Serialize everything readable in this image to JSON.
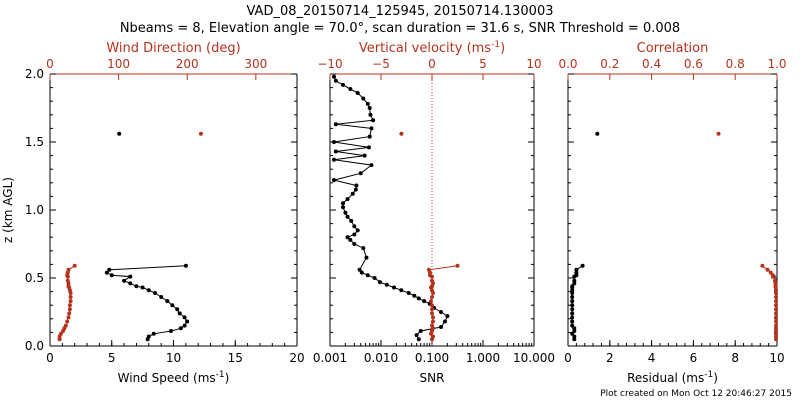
{
  "title_line1": "VAD_08_20150714_125945, 20150714.130003",
  "title_line2": "Nbeams = 8, Elevation angle = 70.0°, scan duration = 31.6 s, SNR Threshold = 0.008",
  "footer": "Plot created on Mon Oct 12 20:46:27 2015",
  "colors": {
    "black": "#000000",
    "red": "#b5321c"
  },
  "chart_data": [
    {
      "type": "scatter",
      "name": "panel-wind",
      "ylabel": "z (km AGL)",
      "ylim": [
        0,
        2
      ],
      "yticks": [
        "0.0",
        "0.5",
        "1.0",
        "1.5",
        "2.0"
      ],
      "bottom_axis": {
        "label": "Wind Speed (ms",
        "label_sup": "-1",
        "label_tail": ")",
        "range": [
          0,
          20
        ],
        "ticks": [
          "0",
          "5",
          "10",
          "15",
          "20"
        ]
      },
      "top_axis": {
        "label": "Wind Direction (deg)",
        "range": [
          0,
          360
        ],
        "ticks": [
          "0",
          "100",
          "200",
          "300"
        ]
      },
      "series": [
        {
          "axis": "bottom",
          "color": "black",
          "connect": true,
          "x": [
            7.9,
            8.0,
            8.4,
            9.8,
            10.6,
            10.9,
            11.1,
            10.9,
            10.5,
            10.3,
            9.9,
            9.5,
            9.0,
            8.5,
            8.0,
            7.5,
            7.0,
            6.5,
            6.0,
            6.5,
            5.0,
            4.6,
            4.8,
            11.0
          ],
          "y": [
            0.05,
            0.07,
            0.09,
            0.11,
            0.13,
            0.15,
            0.18,
            0.21,
            0.24,
            0.27,
            0.3,
            0.33,
            0.36,
            0.39,
            0.41,
            0.43,
            0.44,
            0.46,
            0.48,
            0.51,
            0.52,
            0.54,
            0.56,
            0.59
          ]
        },
        {
          "axis": "bottom",
          "color": "black",
          "connect": false,
          "x": [
            5.6
          ],
          "y": [
            1.56
          ]
        },
        {
          "axis": "top",
          "color": "red",
          "connect": true,
          "x": [
            14,
            14,
            16,
            19,
            21,
            23,
            25,
            27,
            28,
            29,
            29,
            30,
            30,
            30,
            29,
            28,
            27,
            27,
            26,
            26,
            25,
            26,
            27,
            36
          ],
          "y": [
            0.05,
            0.07,
            0.09,
            0.11,
            0.13,
            0.15,
            0.18,
            0.21,
            0.24,
            0.27,
            0.3,
            0.33,
            0.36,
            0.39,
            0.41,
            0.43,
            0.44,
            0.46,
            0.48,
            0.51,
            0.52,
            0.54,
            0.56,
            0.59
          ]
        },
        {
          "axis": "top",
          "color": "red",
          "connect": false,
          "x": [
            220
          ],
          "y": [
            1.56
          ]
        }
      ]
    },
    {
      "type": "scatter",
      "name": "panel-vertical",
      "ylim": [
        0,
        2
      ],
      "bottom_axis": {
        "label": "SNR",
        "scale": "log",
        "range": [
          0.001,
          10
        ],
        "ticks": [
          "0.001",
          "0.010",
          "0.100",
          "1.000",
          "10.000"
        ],
        "tick_values": [
          0.001,
          0.01,
          0.1,
          1,
          10
        ]
      },
      "top_axis": {
        "label": "Vertical velocity (ms",
        "label_sup": "-1",
        "label_tail": ")",
        "range": [
          -10,
          10
        ],
        "ticks": [
          "−10",
          "−5",
          "0",
          "5",
          "10"
        ],
        "tick_values": [
          -10,
          -5,
          0,
          5,
          10
        ]
      },
      "reference_line": {
        "axis": "top",
        "value": 0,
        "style": "dotted",
        "color": "red"
      },
      "series": [
        {
          "axis": "bottom",
          "color": "black",
          "connect": true,
          "x": [
            0.055,
            0.05,
            0.06,
            0.15,
            0.18,
            0.2,
            0.15,
            0.11,
            0.09,
            0.07,
            0.055,
            0.045,
            0.035,
            0.025,
            0.018,
            0.013,
            0.0095,
            0.0075,
            0.0055,
            0.0042,
            0.0038,
            0.0052,
            0.0045,
            0.003,
            0.0025,
            0.0022,
            0.003,
            0.0035,
            0.003,
            0.0026,
            0.0022,
            0.002,
            0.0018,
            0.0018,
            0.0022,
            0.0028,
            0.0032,
            0.0033,
            0.0012,
            0.004,
            0.0065,
            0.0012,
            0.0048,
            0.0013,
            0.0058,
            0.0012,
            0.006,
            0.0065,
            0.0013,
            0.007,
            0.0062,
            0.006,
            0.0055,
            0.0045,
            0.0035,
            0.0025,
            0.0018,
            0.0013,
            0.0012
          ],
          "y": [
            0.05,
            0.08,
            0.11,
            0.14,
            0.18,
            0.22,
            0.25,
            0.28,
            0.31,
            0.33,
            0.35,
            0.37,
            0.39,
            0.41,
            0.43,
            0.45,
            0.47,
            0.5,
            0.52,
            0.54,
            0.56,
            0.65,
            0.72,
            0.75,
            0.78,
            0.8,
            0.82,
            0.85,
            0.88,
            0.92,
            0.95,
            0.98,
            1.02,
            1.05,
            1.08,
            1.12,
            1.15,
            1.18,
            1.22,
            1.27,
            1.33,
            1.37,
            1.4,
            1.43,
            1.46,
            1.5,
            1.54,
            1.6,
            1.63,
            1.66,
            1.7,
            1.75,
            1.78,
            1.82,
            1.86,
            1.89,
            1.92,
            1.95,
            1.98
          ]
        },
        {
          "axis": "top",
          "color": "red",
          "connect": true,
          "x": [
            0,
            0.1,
            -0.1,
            0,
            0.1,
            0,
            0.1,
            0.1,
            0,
            0,
            0,
            -0.1,
            0,
            0.1,
            0,
            -0.1,
            0,
            0.1,
            0,
            0,
            -0.2,
            -0.2,
            -0.3,
            2.5
          ],
          "y": [
            0.05,
            0.07,
            0.09,
            0.11,
            0.13,
            0.15,
            0.18,
            0.21,
            0.24,
            0.27,
            0.3,
            0.33,
            0.36,
            0.39,
            0.41,
            0.43,
            0.44,
            0.46,
            0.48,
            0.51,
            0.52,
            0.54,
            0.56,
            0.59
          ]
        },
        {
          "axis": "top",
          "color": "red",
          "connect": false,
          "x": [
            -3.0
          ],
          "y": [
            1.56
          ]
        }
      ]
    },
    {
      "type": "scatter",
      "name": "panel-residual",
      "ylim": [
        0,
        2
      ],
      "bottom_axis": {
        "label": "Residual (ms",
        "label_sup": "-1",
        "label_tail": ")",
        "range": [
          0,
          10
        ],
        "ticks": [
          "0",
          "2",
          "4",
          "6",
          "8",
          "10"
        ]
      },
      "top_axis": {
        "label": "Correlation",
        "range": [
          0,
          1
        ],
        "ticks": [
          "0.0",
          "0.2",
          "0.4",
          "0.6",
          "0.8",
          "1.0"
        ]
      },
      "series": [
        {
          "axis": "bottom",
          "color": "black",
          "connect": true,
          "x": [
            0.3,
            0.3,
            0.2,
            0.3,
            0.3,
            0.2,
            0.2,
            0.2,
            0.2,
            0.2,
            0.2,
            0.2,
            0.2,
            0.2,
            0.2,
            0.2,
            0.2,
            0.3,
            0.3,
            0.3,
            0.4,
            0.4,
            0.4,
            0.7
          ],
          "y": [
            0.05,
            0.07,
            0.09,
            0.11,
            0.13,
            0.15,
            0.18,
            0.21,
            0.24,
            0.27,
            0.3,
            0.33,
            0.36,
            0.39,
            0.41,
            0.43,
            0.44,
            0.46,
            0.48,
            0.51,
            0.52,
            0.54,
            0.56,
            0.59
          ]
        },
        {
          "axis": "bottom",
          "color": "black",
          "connect": false,
          "x": [
            1.4
          ],
          "y": [
            1.56
          ]
        },
        {
          "axis": "top",
          "color": "red",
          "connect": true,
          "x": [
            0.995,
            0.995,
            0.995,
            0.995,
            0.995,
            0.995,
            0.995,
            0.995,
            0.995,
            0.995,
            0.995,
            0.995,
            0.995,
            0.995,
            0.995,
            0.994,
            0.993,
            0.993,
            0.99,
            0.985,
            0.98,
            0.97,
            0.955,
            0.93
          ],
          "y": [
            0.05,
            0.07,
            0.09,
            0.11,
            0.13,
            0.15,
            0.18,
            0.21,
            0.24,
            0.27,
            0.3,
            0.33,
            0.36,
            0.39,
            0.41,
            0.43,
            0.44,
            0.46,
            0.48,
            0.51,
            0.52,
            0.54,
            0.56,
            0.59
          ]
        },
        {
          "axis": "top",
          "color": "red",
          "connect": false,
          "x": [
            0.72
          ],
          "y": [
            1.56
          ]
        }
      ]
    }
  ]
}
